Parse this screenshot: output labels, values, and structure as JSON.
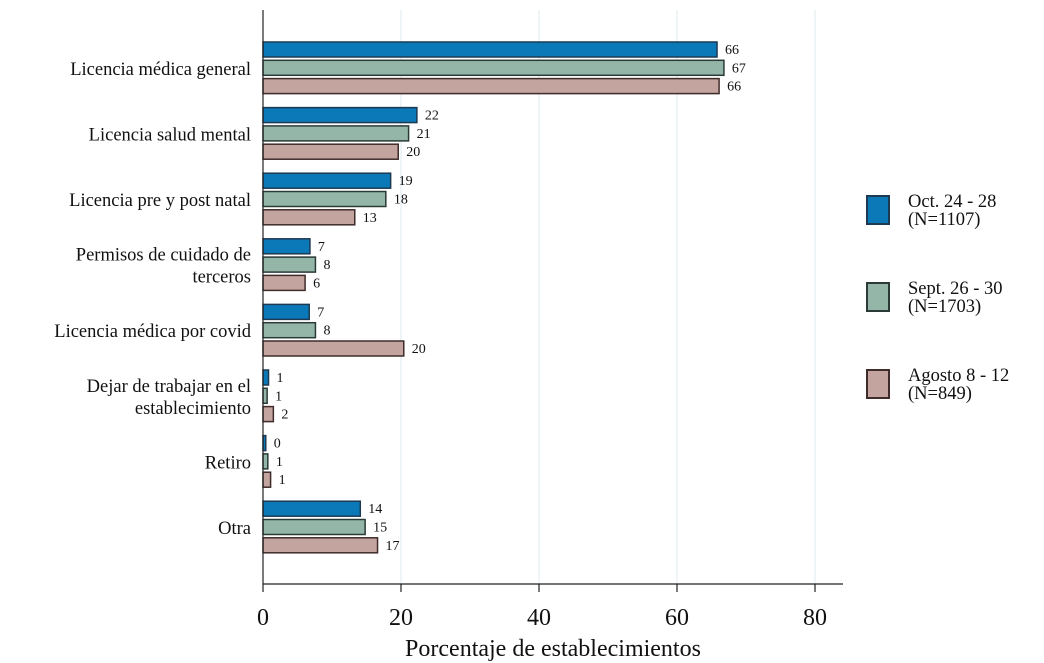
{
  "chart_data": {
    "type": "bar",
    "orientation": "horizontal",
    "title": "",
    "xlabel": "Porcentaje de establecimientos",
    "ylabel": "",
    "xlim": [
      0,
      84
    ],
    "xticks": [
      0,
      20,
      40,
      60,
      80
    ],
    "grid": true,
    "legend_position": "right",
    "categories": [
      [
        "Licencia médica general"
      ],
      [
        "Licencia salud mental"
      ],
      [
        "Licencia pre y post natal"
      ],
      [
        "Permisos de cuidado de",
        "terceros"
      ],
      [
        "Licencia médica por covid"
      ],
      [
        "Dejar de trabajar en el",
        "establecimiento"
      ],
      [
        "Retiro"
      ],
      [
        "Otra"
      ]
    ],
    "series": [
      {
        "name": [
          "Oct. 24 - 28",
          "(N=1107)"
        ],
        "color": "#0b79b8",
        "border": "#1d3a52",
        "values": [
          66,
          22,
          19,
          7,
          7,
          1,
          0,
          14
        ],
        "bar_values": [
          65.8,
          22.3,
          18.5,
          6.8,
          6.7,
          0.8,
          0.4,
          14.1
        ]
      },
      {
        "name": [
          "Sept. 26 - 30",
          "(N=1703)"
        ],
        "color": "#94b6a9",
        "border": "#2a3a36",
        "values": [
          67,
          21,
          18,
          8,
          8,
          1,
          1,
          15
        ],
        "bar_values": [
          66.8,
          21.1,
          17.8,
          7.6,
          7.6,
          0.6,
          0.7,
          14.8
        ]
      },
      {
        "name": [
          "Agosto 8 - 12",
          "(N=849)"
        ],
        "color": "#c4a49f",
        "border": "#3f2c2a",
        "values": [
          66,
          20,
          13,
          6,
          20,
          2,
          1,
          17
        ],
        "bar_values": [
          66.1,
          19.6,
          13.3,
          6.1,
          20.4,
          1.5,
          1.1,
          16.6
        ]
      }
    ]
  }
}
